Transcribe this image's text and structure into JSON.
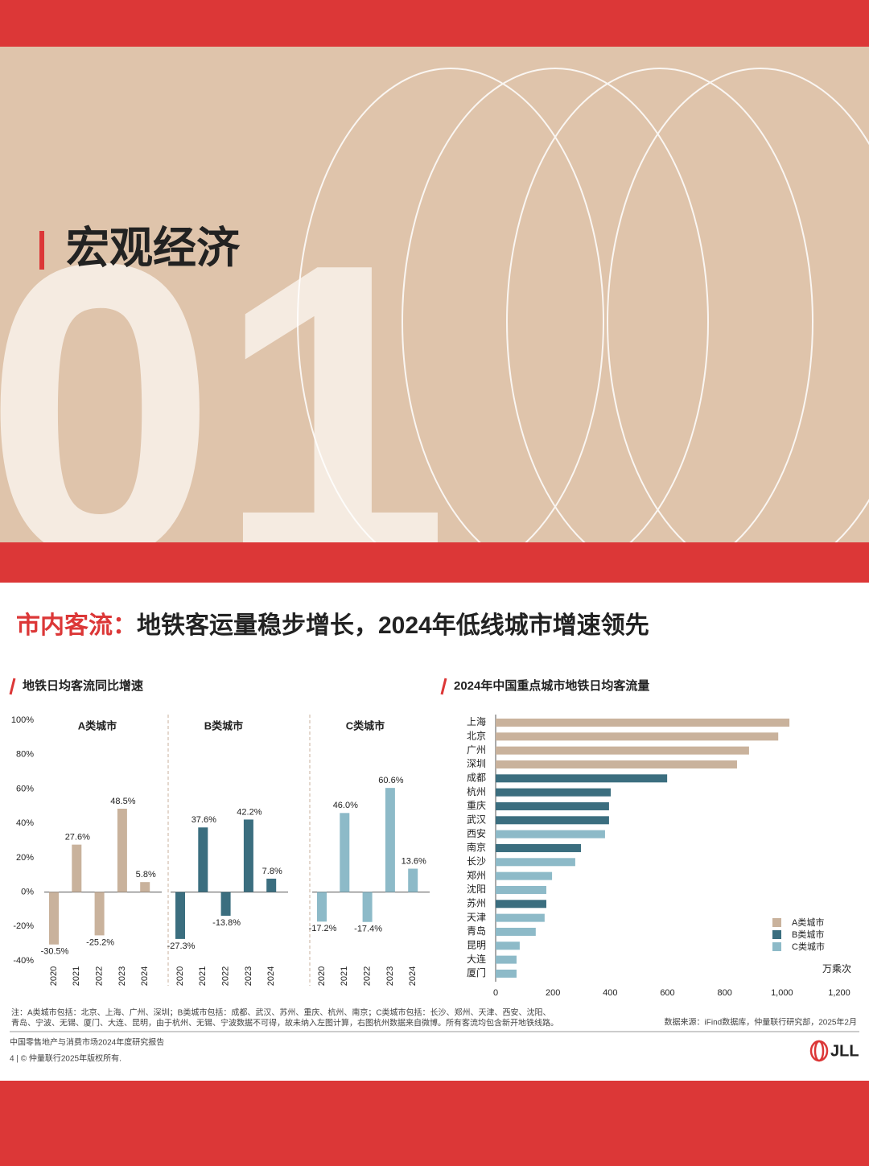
{
  "banner": {
    "title": "宏观经济",
    "number": "01"
  },
  "heading": {
    "highlight": "市内客流：",
    "text": "地铁客运量稳步增长，2024年低线城市增速领先"
  },
  "chart_data": [
    {
      "type": "bar",
      "title": "地铁日均客流同比增速",
      "ylim": [
        -40,
        100
      ],
      "yticks": [
        {
          "value": -40,
          "label": "-40%"
        },
        {
          "value": -20,
          "label": "-20%"
        },
        {
          "value": 0,
          "label": "0%"
        },
        {
          "value": 20,
          "label": "20%"
        },
        {
          "value": 40,
          "label": "40%"
        },
        {
          "value": 60,
          "label": "60%"
        },
        {
          "value": 80,
          "label": "80%"
        },
        {
          "value": 100,
          "label": "100%"
        }
      ],
      "panels": [
        {
          "title": "A类城市",
          "color": "#c9b29c",
          "categories": [
            "2020",
            "2021",
            "2022",
            "2023",
            "2024"
          ],
          "values": [
            -30.5,
            27.6,
            -25.2,
            48.5,
            5.8
          ],
          "value_labels": [
            "-30.5%",
            "27.6%",
            "-25.2%",
            "48.5%",
            "5.8%"
          ]
        },
        {
          "title": "B类城市",
          "color": "#3b6e7f",
          "categories": [
            "2020",
            "2021",
            "2022",
            "2023",
            "2024"
          ],
          "values": [
            -27.3,
            37.6,
            -13.8,
            42.2,
            7.8
          ],
          "value_labels": [
            "-27.3%",
            "37.6%",
            "-13.8%",
            "42.2%",
            "7.8%"
          ]
        },
        {
          "title": "C类城市",
          "color": "#8dbac8",
          "categories": [
            "2020",
            "2021",
            "2022",
            "2023",
            "2024"
          ],
          "values": [
            -17.2,
            46.0,
            -17.4,
            60.6,
            13.6
          ],
          "value_labels": [
            "-17.2%",
            "46.0%",
            "-17.4%",
            "60.6%",
            "13.6%"
          ]
        }
      ]
    },
    {
      "type": "hbar",
      "title": "2024年中国重点城市地铁日均客流量",
      "categories": [
        "上海",
        "北京",
        "广州",
        "深圳",
        "成都",
        "杭州",
        "重庆",
        "武汉",
        "西安",
        "南京",
        "长沙",
        "郑州",
        "沈阳",
        "苏州",
        "天津",
        "青岛",
        "昆明",
        "大连",
        "厦门"
      ],
      "series": [
        {
          "name": "A类城市",
          "color": "#c9b29c",
          "values": [
            1026,
            987,
            885,
            843,
            null,
            null,
            null,
            null,
            null,
            null,
            null,
            null,
            null,
            null,
            null,
            null,
            null,
            null,
            null
          ]
        },
        {
          "name": "B类城市",
          "color": "#3b6e7f",
          "values": [
            null,
            null,
            null,
            null,
            599,
            402,
            396,
            396,
            null,
            298,
            null,
            null,
            null,
            177,
            null,
            null,
            null,
            null,
            null
          ]
        },
        {
          "name": "C类城市",
          "color": "#8dbac8",
          "values": [
            null,
            null,
            null,
            null,
            null,
            null,
            null,
            null,
            382,
            null,
            278,
            197,
            177,
            null,
            171,
            140,
            84,
            73,
            73
          ]
        }
      ],
      "xlim": [
        0,
        1200
      ],
      "xticks": [
        0,
        200,
        400,
        600,
        800,
        {
          "value": 1000,
          "label": "1,000"
        },
        {
          "value": 1200,
          "label": "1,200"
        }
      ],
      "xlabel": "万乘次",
      "legend": "lower-right"
    }
  ],
  "notes": [
    "注：A类城市包括：北京、上海、广州、深圳；B类城市包括：成都、武汉、苏州、重庆、杭州、南京；C类城市包括：长沙、郑州、天津、西安、沈阳、",
    "青岛、宁波、无锡、厦门、大连、昆明，由于杭州、无锡、宁波数据不可得，故未纳入左图计算，右图杭州数据来自微博。所有客流均包含新开地铁线路。"
  ],
  "source": "数据来源：iFind数据库，仲量联行研究部，2025年2月",
  "footer": {
    "report": "中国零售地产与消费市场2024年度研究报告",
    "page": "4 | © 仲量联行2025年版权所有.",
    "logo": "JLL"
  }
}
